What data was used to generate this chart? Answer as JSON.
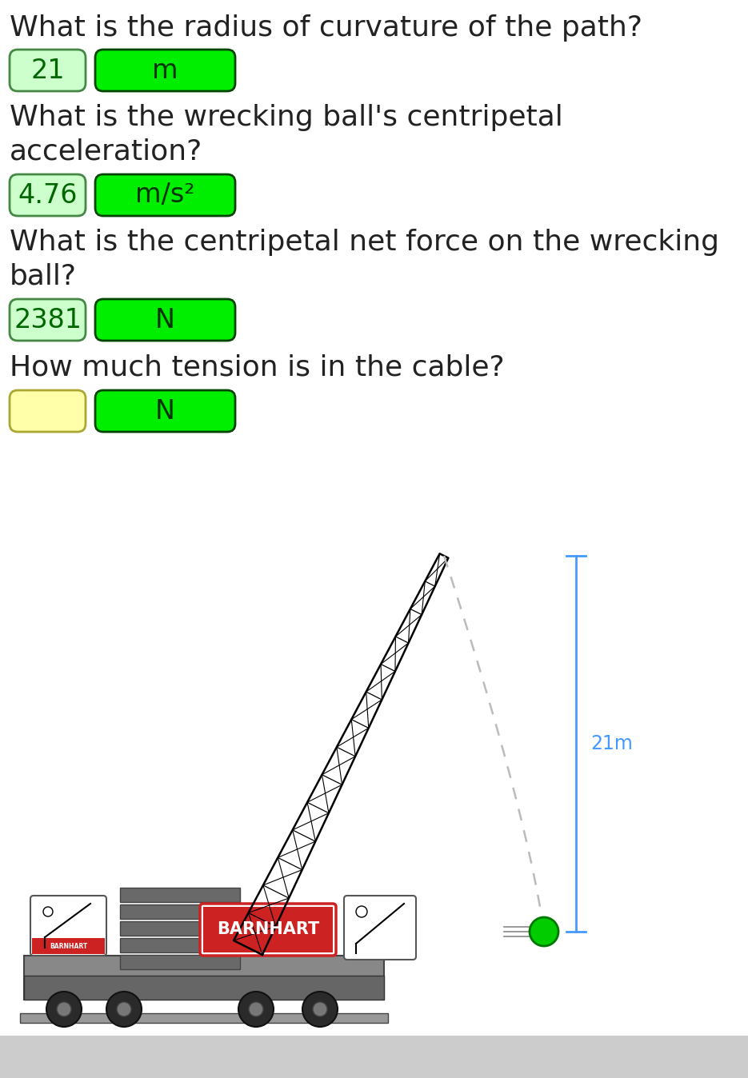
{
  "bg_color": "#ffffff",
  "questions": [
    {
      "text_lines": [
        "What is the radius of curvature of the path?"
      ],
      "answer_value": "21",
      "answer_unit": "m",
      "answer_box_color": "#ccffcc",
      "unit_box_color": "#00ee00",
      "answer_text_color": "#006600",
      "unit_text_color": "#003300"
    },
    {
      "text_lines": [
        "What is the wrecking ball's centripetal",
        "acceleration?"
      ],
      "answer_value": "4.76",
      "answer_unit": "m/s²",
      "answer_box_color": "#ccffcc",
      "unit_box_color": "#00ee00",
      "answer_text_color": "#006600",
      "unit_text_color": "#003300"
    },
    {
      "text_lines": [
        "What is the centripetal net force on the wrecking",
        "ball?"
      ],
      "answer_value": "2381",
      "answer_unit": "N",
      "answer_box_color": "#ccffcc",
      "unit_box_color": "#00ee00",
      "answer_text_color": "#006600",
      "unit_text_color": "#003300"
    },
    {
      "text_lines": [
        "How much tension is in the cable?"
      ],
      "answer_value": "",
      "answer_unit": "N",
      "answer_box_color": "#ffffaa",
      "unit_box_color": "#00ee00",
      "answer_text_color": "#006600",
      "unit_text_color": "#003300"
    }
  ],
  "dim_label": "21m",
  "dim_line_color": "#4499ff",
  "ball_color": "#00cc00",
  "barnhart_red": "#cc2222",
  "gray_dark": "#666666",
  "gray_mid": "#888888",
  "gray_light": "#aaaaaa",
  "gray_chassis": "#888888",
  "bottom_strip_color": "#cccccc"
}
